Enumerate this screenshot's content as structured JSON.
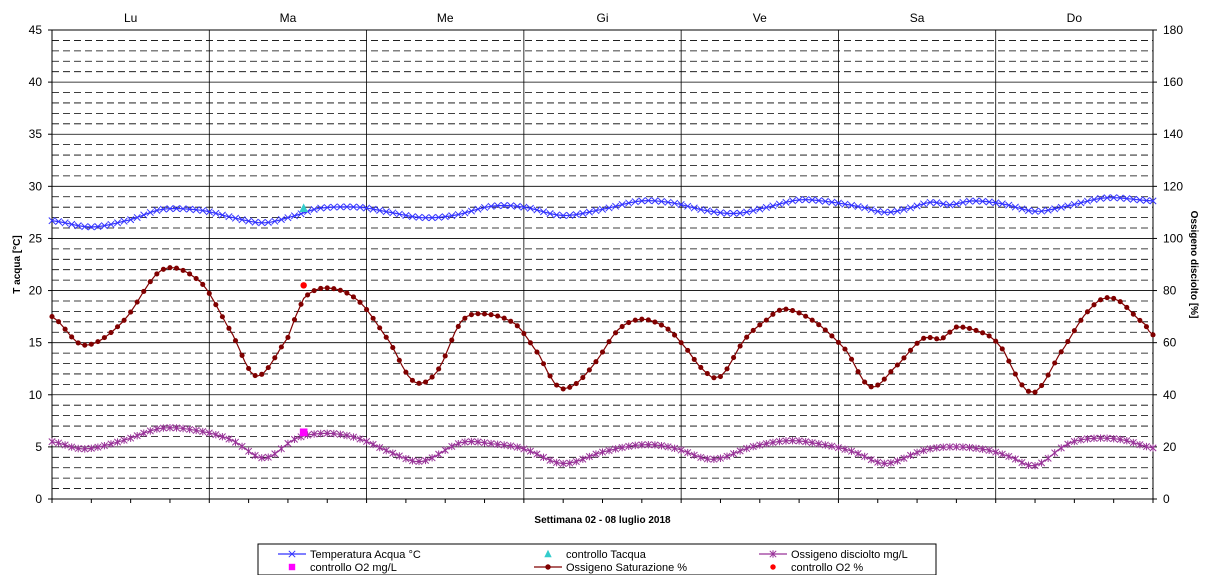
{
  "chart_data": {
    "type": "line",
    "title": "",
    "xlabel": "Settimana 02 - 08 luglio 2018",
    "ylabel": "T acqua [°C]",
    "y2label": "Ossigeno disciolto [%]",
    "ylim": [
      0,
      45
    ],
    "y2lim": [
      0,
      180
    ],
    "yticks": [
      "0",
      "5",
      "10",
      "15",
      "20",
      "25",
      "30",
      "35",
      "40",
      "45"
    ],
    "y2ticks": [
      "0",
      "20",
      "40",
      "60",
      "80",
      "100",
      "120",
      "140",
      "160",
      "180"
    ],
    "xlim": [
      0,
      7
    ],
    "days": [
      "Lu",
      "Ma",
      "Me",
      "Gi",
      "Ve",
      "Sa",
      "Do"
    ],
    "grid": "major solid per 5 units, minor dashed per 1 unit, vertical lines per day",
    "legend_position": "bottom",
    "series": [
      {
        "name": "Temperatura Acqua °C",
        "axis": "left",
        "color": "#3333ff",
        "marker": "x",
        "points": [
          [
            0,
            26.7
          ],
          [
            0.25,
            26.1
          ],
          [
            0.5,
            26.8
          ],
          [
            0.7,
            27.8
          ],
          [
            0.95,
            27.7
          ],
          [
            1.15,
            27.0
          ],
          [
            1.35,
            26.5
          ],
          [
            1.55,
            27.2
          ],
          [
            1.7,
            27.9
          ],
          [
            1.95,
            28.0
          ],
          [
            2.15,
            27.5
          ],
          [
            2.35,
            27.0
          ],
          [
            2.55,
            27.2
          ],
          [
            2.8,
            28.1
          ],
          [
            3.0,
            28.0
          ],
          [
            3.25,
            27.2
          ],
          [
            3.5,
            27.8
          ],
          [
            3.75,
            28.6
          ],
          [
            3.95,
            28.4
          ],
          [
            4.15,
            27.7
          ],
          [
            4.35,
            27.4
          ],
          [
            4.55,
            28.0
          ],
          [
            4.75,
            28.7
          ],
          [
            4.95,
            28.5
          ],
          [
            5.15,
            28.0
          ],
          [
            5.3,
            27.5
          ],
          [
            5.45,
            27.9
          ],
          [
            5.6,
            28.5
          ],
          [
            5.7,
            28.2
          ],
          [
            5.85,
            28.6
          ],
          [
            6.05,
            28.3
          ],
          [
            6.25,
            27.6
          ],
          [
            6.45,
            28.1
          ],
          [
            6.7,
            28.9
          ],
          [
            7.0,
            28.6
          ]
        ]
      },
      {
        "name": "controllo Tacqua",
        "axis": "left",
        "color": "#33cccc",
        "marker": "triangle",
        "points": [
          [
            1.6,
            27.9
          ]
        ]
      },
      {
        "name": "Ossigeno disciolto mg/L",
        "axis": "left",
        "color": "#993399",
        "marker": "star",
        "points": [
          [
            0,
            5.5
          ],
          [
            0.2,
            4.8
          ],
          [
            0.45,
            5.6
          ],
          [
            0.7,
            6.8
          ],
          [
            0.95,
            6.5
          ],
          [
            1.15,
            5.6
          ],
          [
            1.35,
            3.9
          ],
          [
            1.55,
            5.8
          ],
          [
            1.75,
            6.3
          ],
          [
            1.95,
            5.8
          ],
          [
            2.15,
            4.5
          ],
          [
            2.35,
            3.6
          ],
          [
            2.6,
            5.4
          ],
          [
            2.8,
            5.3
          ],
          [
            3.0,
            4.8
          ],
          [
            3.25,
            3.4
          ],
          [
            3.5,
            4.5
          ],
          [
            3.75,
            5.2
          ],
          [
            3.95,
            4.9
          ],
          [
            4.2,
            3.8
          ],
          [
            4.45,
            5.0
          ],
          [
            4.7,
            5.6
          ],
          [
            4.95,
            5.1
          ],
          [
            5.1,
            4.5
          ],
          [
            5.3,
            3.4
          ],
          [
            5.55,
            4.7
          ],
          [
            5.75,
            5.0
          ],
          [
            5.95,
            4.7
          ],
          [
            6.1,
            4.0
          ],
          [
            6.25,
            3.2
          ],
          [
            6.45,
            5.2
          ],
          [
            6.6,
            5.8
          ],
          [
            6.8,
            5.7
          ],
          [
            7.0,
            4.9
          ]
        ]
      },
      {
        "name": "controllo O2 mg/L",
        "axis": "left",
        "color": "#ff00ff",
        "marker": "square",
        "points": [
          [
            1.6,
            6.4
          ]
        ]
      },
      {
        "name": "Ossigeno Saturazione %",
        "axis": "right",
        "color": "#800000",
        "marker": "dot",
        "points": [
          [
            0,
            70
          ],
          [
            0.2,
            59
          ],
          [
            0.45,
            68
          ],
          [
            0.7,
            88
          ],
          [
            0.95,
            83
          ],
          [
            1.15,
            63
          ],
          [
            1.3,
            47
          ],
          [
            1.5,
            62
          ],
          [
            1.6,
            77
          ],
          [
            1.75,
            81
          ],
          [
            1.95,
            76
          ],
          [
            2.15,
            60
          ],
          [
            2.3,
            45
          ],
          [
            2.45,
            49
          ],
          [
            2.6,
            68
          ],
          [
            2.75,
            71
          ],
          [
            2.95,
            67
          ],
          [
            3.1,
            55
          ],
          [
            3.2,
            44
          ],
          [
            3.3,
            43
          ],
          [
            3.45,
            52
          ],
          [
            3.6,
            65
          ],
          [
            3.75,
            69
          ],
          [
            3.9,
            66
          ],
          [
            4.0,
            60
          ],
          [
            4.15,
            49
          ],
          [
            4.25,
            47
          ],
          [
            4.4,
            61
          ],
          [
            4.55,
            69
          ],
          [
            4.65,
            73
          ],
          [
            4.85,
            68
          ],
          [
            5.05,
            57
          ],
          [
            5.2,
            43
          ],
          [
            5.35,
            50
          ],
          [
            5.55,
            62
          ],
          [
            5.65,
            61
          ],
          [
            5.75,
            66
          ],
          [
            5.95,
            63
          ],
          [
            6.05,
            57
          ],
          [
            6.15,
            45
          ],
          [
            6.25,
            41
          ],
          [
            6.4,
            55
          ],
          [
            6.6,
            73
          ],
          [
            6.75,
            77
          ],
          [
            6.95,
            67
          ],
          [
            7.0,
            63
          ]
        ]
      },
      {
        "name": "controllo O2 %",
        "axis": "right",
        "color": "#ff0000",
        "marker": "dot",
        "points": [
          [
            1.6,
            82
          ]
        ]
      }
    ]
  },
  "legend": {
    "items": [
      "Temperatura Acqua °C",
      "controllo Tacqua",
      "Ossigeno disciolto mg/L",
      "controllo O2 mg/L",
      "Ossigeno Saturazione %",
      "controllo O2 %"
    ]
  }
}
